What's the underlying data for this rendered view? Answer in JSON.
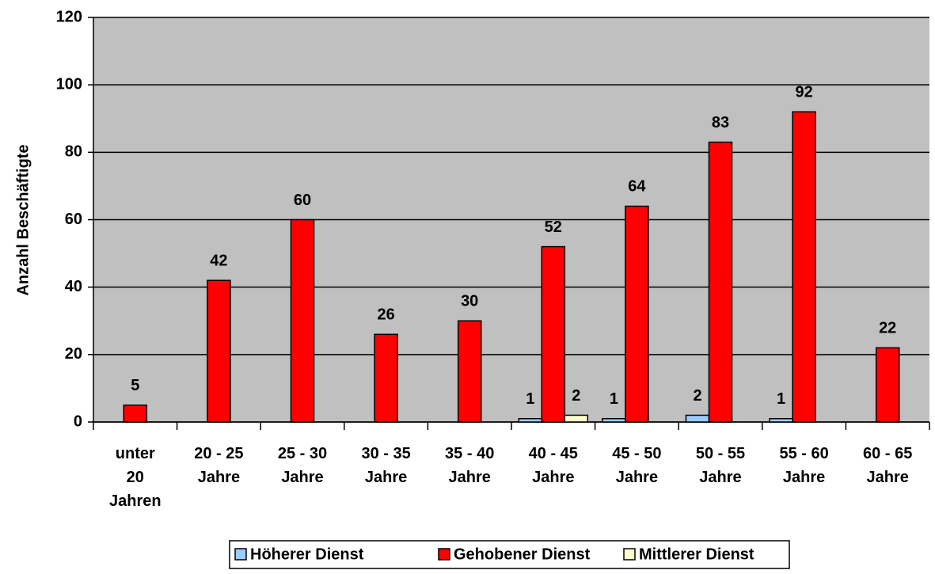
{
  "chart_data": {
    "type": "bar",
    "y_label": "Anzahl Beschäftigte",
    "categories": [
      "unter 20 Jahren",
      "20 - 25 Jahre",
      "25 - 30 Jahre",
      "30 - 35 Jahre",
      "35 - 40 Jahre",
      "40 - 45 Jahre",
      "45 - 50 Jahre",
      "50 - 55 Jahre",
      "55 - 60 Jahre",
      "60 - 65 Jahre"
    ],
    "series": [
      {
        "name": "Höherer Dienst",
        "color": "#99ccff",
        "values": [
          null,
          null,
          null,
          null,
          null,
          1,
          1,
          2,
          1,
          null
        ]
      },
      {
        "name": "Gehobener Dienst",
        "color": "#ff0000",
        "values": [
          5,
          42,
          60,
          26,
          30,
          52,
          64,
          83,
          92,
          22
        ]
      },
      {
        "name": "Mittlerer Dienst",
        "color": "#ffffcc",
        "values": [
          null,
          null,
          null,
          null,
          null,
          2,
          null,
          null,
          null,
          null
        ]
      }
    ],
    "ylim": [
      0,
      120
    ],
    "yticks": [
      0,
      20,
      40,
      60,
      80,
      100,
      120
    ],
    "grid": true,
    "legend": "bottom"
  }
}
